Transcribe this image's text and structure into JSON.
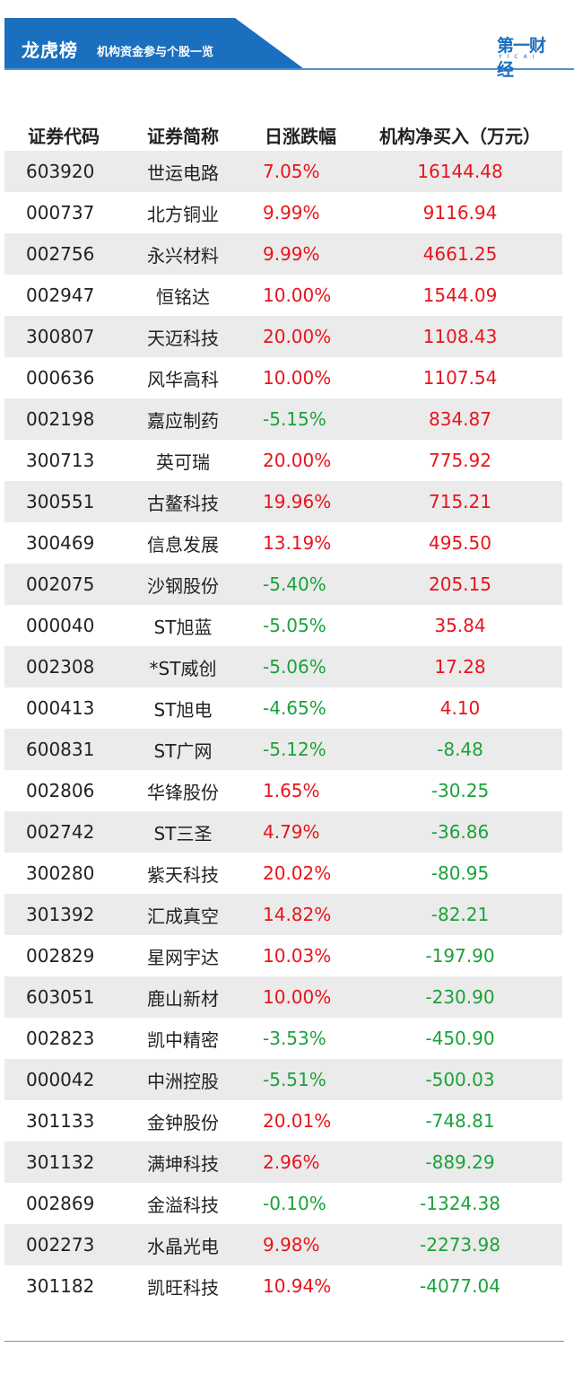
{
  "header": {
    "title": "龙虎榜",
    "subtitle": "机构资金参与个股一览",
    "logo_text": "第一财经",
    "logo_sub": "YICAI",
    "colors": {
      "banner": "#1a6fbf",
      "up": "#e8141c",
      "down": "#1aa23a"
    }
  },
  "table": {
    "columns": [
      "证券代码",
      "证券简称",
      "日涨跌幅",
      "机构净买入（万元）"
    ],
    "rows": [
      {
        "code": "603920",
        "name": "世运电路",
        "change": "7.05%",
        "net": "16144.48",
        "change_dir": "up",
        "net_dir": "up"
      },
      {
        "code": "000737",
        "name": "北方铜业",
        "change": "9.99%",
        "net": "9116.94",
        "change_dir": "up",
        "net_dir": "up"
      },
      {
        "code": "002756",
        "name": "永兴材料",
        "change": "9.99%",
        "net": "4661.25",
        "change_dir": "up",
        "net_dir": "up"
      },
      {
        "code": "002947",
        "name": "恒铭达",
        "change": "10.00%",
        "net": "1544.09",
        "change_dir": "up",
        "net_dir": "up"
      },
      {
        "code": "300807",
        "name": "天迈科技",
        "change": "20.00%",
        "net": "1108.43",
        "change_dir": "up",
        "net_dir": "up"
      },
      {
        "code": "000636",
        "name": "风华高科",
        "change": "10.00%",
        "net": "1107.54",
        "change_dir": "up",
        "net_dir": "up"
      },
      {
        "code": "002198",
        "name": "嘉应制药",
        "change": "-5.15%",
        "net": "834.87",
        "change_dir": "down",
        "net_dir": "up"
      },
      {
        "code": "300713",
        "name": "英可瑞",
        "change": "20.00%",
        "net": "775.92",
        "change_dir": "up",
        "net_dir": "up"
      },
      {
        "code": "300551",
        "name": "古鳌科技",
        "change": "19.96%",
        "net": "715.21",
        "change_dir": "up",
        "net_dir": "up"
      },
      {
        "code": "300469",
        "name": "信息发展",
        "change": "13.19%",
        "net": "495.50",
        "change_dir": "up",
        "net_dir": "up"
      },
      {
        "code": "002075",
        "name": "沙钢股份",
        "change": "-5.40%",
        "net": "205.15",
        "change_dir": "down",
        "net_dir": "up"
      },
      {
        "code": "000040",
        "name": "ST旭蓝",
        "change": "-5.05%",
        "net": "35.84",
        "change_dir": "down",
        "net_dir": "up"
      },
      {
        "code": "002308",
        "name": "*ST威创",
        "change": "-5.06%",
        "net": "17.28",
        "change_dir": "down",
        "net_dir": "up"
      },
      {
        "code": "000413",
        "name": "ST旭电",
        "change": "-4.65%",
        "net": "4.10",
        "change_dir": "down",
        "net_dir": "up"
      },
      {
        "code": "600831",
        "name": "ST广网",
        "change": "-5.12%",
        "net": "-8.48",
        "change_dir": "down",
        "net_dir": "down"
      },
      {
        "code": "002806",
        "name": "华锋股份",
        "change": "1.65%",
        "net": "-30.25",
        "change_dir": "up",
        "net_dir": "down"
      },
      {
        "code": "002742",
        "name": "ST三圣",
        "change": "4.79%",
        "net": "-36.86",
        "change_dir": "up",
        "net_dir": "down"
      },
      {
        "code": "300280",
        "name": "紫天科技",
        "change": "20.02%",
        "net": "-80.95",
        "change_dir": "up",
        "net_dir": "down"
      },
      {
        "code": "301392",
        "name": "汇成真空",
        "change": "14.82%",
        "net": "-82.21",
        "change_dir": "up",
        "net_dir": "down"
      },
      {
        "code": "002829",
        "name": "星网宇达",
        "change": "10.03%",
        "net": "-197.90",
        "change_dir": "up",
        "net_dir": "down"
      },
      {
        "code": "603051",
        "name": "鹿山新材",
        "change": "10.00%",
        "net": "-230.90",
        "change_dir": "up",
        "net_dir": "down"
      },
      {
        "code": "002823",
        "name": "凯中精密",
        "change": "-3.53%",
        "net": "-450.90",
        "change_dir": "down",
        "net_dir": "down"
      },
      {
        "code": "000042",
        "name": "中洲控股",
        "change": "-5.51%",
        "net": "-500.03",
        "change_dir": "down",
        "net_dir": "down"
      },
      {
        "code": "301133",
        "name": "金钟股份",
        "change": "20.01%",
        "net": "-748.81",
        "change_dir": "up",
        "net_dir": "down"
      },
      {
        "code": "301132",
        "name": "满坤科技",
        "change": "2.96%",
        "net": "-889.29",
        "change_dir": "up",
        "net_dir": "down"
      },
      {
        "code": "002869",
        "name": "金溢科技",
        "change": "-0.10%",
        "net": "-1324.38",
        "change_dir": "down",
        "net_dir": "down"
      },
      {
        "code": "002273",
        "name": "水晶光电",
        "change": "9.98%",
        "net": "-2273.98",
        "change_dir": "up",
        "net_dir": "down"
      },
      {
        "code": "301182",
        "name": "凯旺科技",
        "change": "10.94%",
        "net": "-4077.04",
        "change_dir": "up",
        "net_dir": "down"
      }
    ]
  }
}
